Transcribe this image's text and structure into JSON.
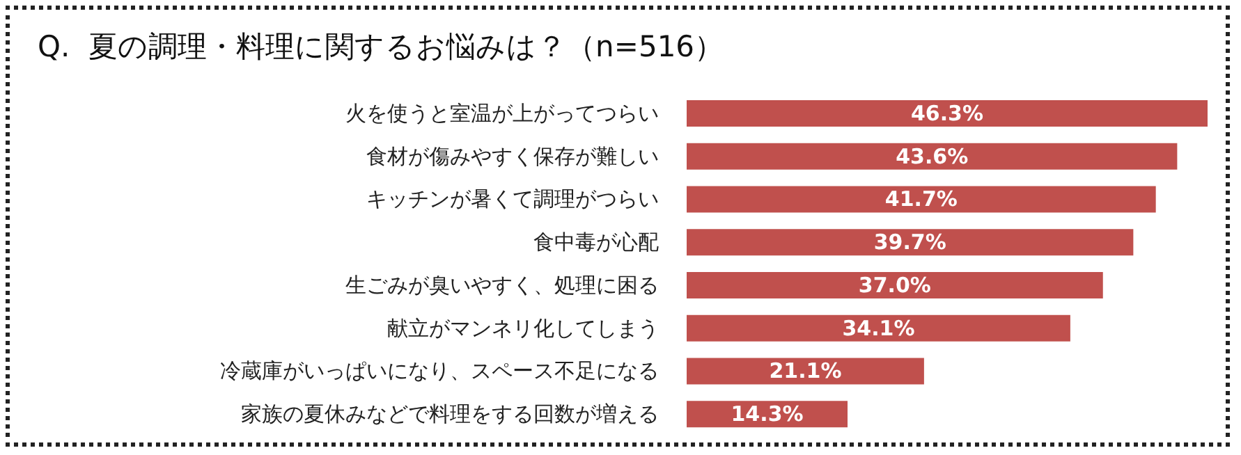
{
  "chart_data": {
    "type": "bar",
    "orientation": "horizontal",
    "title": "Q.  夏の調理・料理に関するお悩みは？（n=516）",
    "categories": [
      "火を使うと室温が上がってつらい",
      "食材が傷みやすく保存が難しい",
      "キッチンが暑くて調理がつらい",
      "食中毒が心配",
      "生ごみが臭いやすく、処理に困る",
      "献立がマンネリ化してしまう",
      "冷蔵庫がいっぱいになり、スペース不足になる",
      "家族の夏休みなどで料理をする回数が増える"
    ],
    "values": [
      46.3,
      43.6,
      41.7,
      39.7,
      37.0,
      34.1,
      21.1,
      14.3
    ],
    "value_labels": [
      "46.3%",
      "43.6%",
      "41.7%",
      "39.7%",
      "37.0%",
      "34.1%",
      "21.1%",
      "14.3%"
    ],
    "color": "#c0504d",
    "tick_labels": "y"
  }
}
